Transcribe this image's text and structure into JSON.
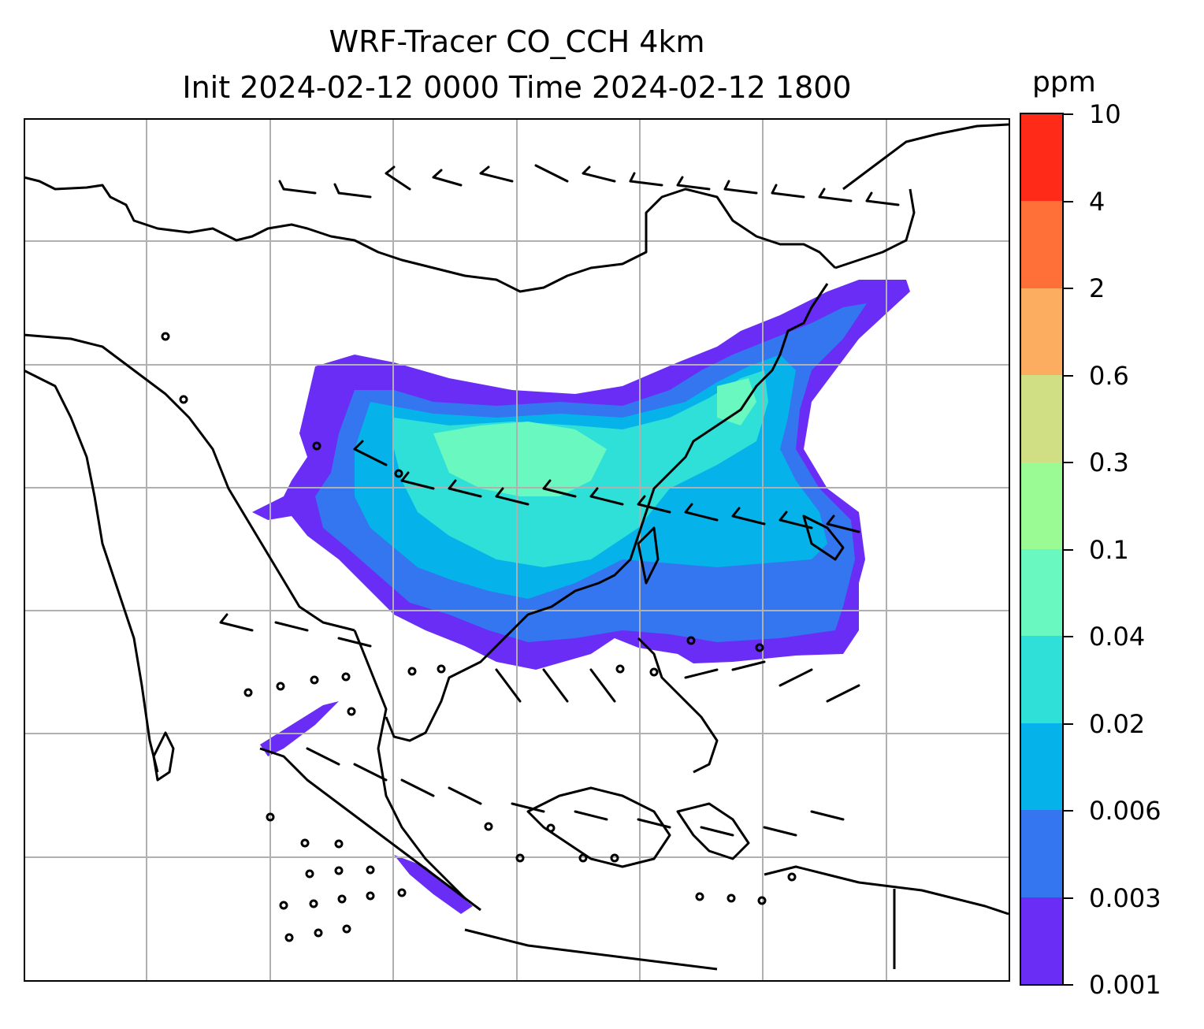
{
  "title": {
    "line1": "WRF-Tracer CO_CCH 4km",
    "line2": "Init 2024-02-12 0000 Time 2024-02-12 1800"
  },
  "colorbar": {
    "unit": "ppm",
    "labels": [
      "0.001",
      "0.003",
      "0.006",
      "0.02",
      "0.04",
      "0.1",
      "0.3",
      "0.6",
      "2",
      "4",
      "10"
    ],
    "colors": [
      "#6a2df5",
      "#3475f0",
      "#05b2ea",
      "#2ee0d7",
      "#68f8c0",
      "#9afa94",
      "#d0df84",
      "#fcad60",
      "#ff7038",
      "#ff2b18"
    ]
  },
  "map": {
    "grid": "on",
    "coastline_color": "#000000",
    "gridline_color": "#b0b0b0"
  }
}
